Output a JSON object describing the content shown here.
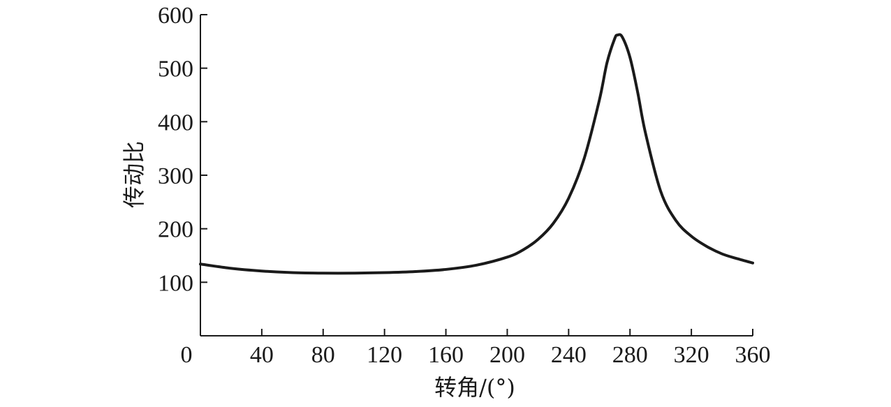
{
  "chart_data": {
    "type": "line",
    "title": "",
    "xlabel": "转角/(°)",
    "ylabel": "传动比",
    "xlim": [
      0,
      360
    ],
    "ylim": [
      0,
      600
    ],
    "x_ticks": [
      0,
      40,
      80,
      120,
      160,
      200,
      240,
      280,
      320,
      360
    ],
    "y_ticks": [
      100,
      200,
      300,
      400,
      500,
      600
    ],
    "x_tick_labels": [
      "0",
      "40",
      "80",
      "120",
      "160",
      "200",
      "240",
      "280",
      "320",
      "360"
    ],
    "y_tick_labels": [
      "100",
      "200",
      "300",
      "400",
      "500",
      "600"
    ],
    "grid": false,
    "legend": "none",
    "line_color": "#1a1a1a",
    "series": [
      {
        "x": [
          0,
          20,
          40,
          60,
          80,
          100,
          120,
          140,
          160,
          180,
          200,
          210,
          220,
          230,
          240,
          250,
          260,
          265,
          270,
          272,
          275,
          280,
          285,
          290,
          300,
          310,
          320,
          330,
          340,
          350,
          360
        ],
        "y": [
          134,
          126,
          121,
          118,
          117,
          117,
          118,
          120,
          124,
          132,
          147,
          160,
          180,
          210,
          257,
          330,
          440,
          510,
          555,
          562,
          558,
          520,
          455,
          380,
          270,
          215,
          186,
          167,
          153,
          144,
          136
        ]
      }
    ]
  }
}
